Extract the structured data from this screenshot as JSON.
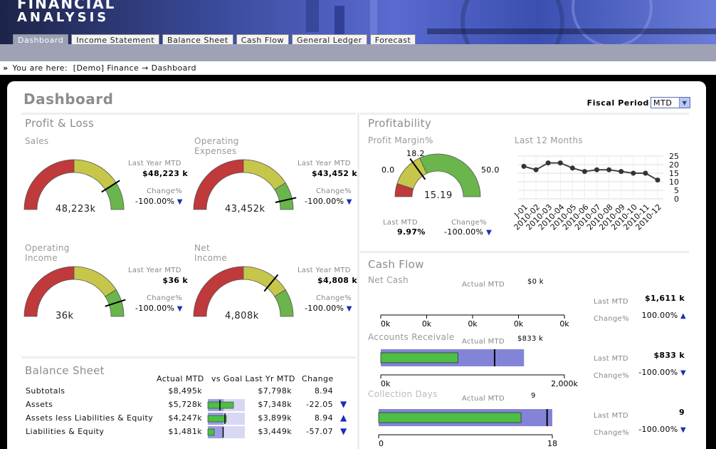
{
  "app": {
    "logo_line1": "FINANCIAL",
    "logo_line2": "ANALYSIS"
  },
  "nav": {
    "tabs": [
      "Dashboard",
      "Income Statement",
      "Balance Sheet",
      "Cash Flow",
      "General Ledger",
      "Forecast"
    ],
    "active": 0
  },
  "breadcrumb": {
    "prefix": "You are here:",
    "path": "[Demo] Finance → Dashboard"
  },
  "page": {
    "title": "Dashboard",
    "fiscal_label": "Fiscal Period",
    "fiscal_value": "MTD"
  },
  "colors": {
    "red": "#c0393b",
    "yellow": "#c6c64a",
    "green": "#6ab54c",
    "bar_green": "#4dbf45",
    "bar_blue": "#8384d8",
    "arrow": "#1a2eb8"
  },
  "profit_loss": {
    "title": "Profit & Loss",
    "last_year_label": "Last Year MTD",
    "change_label": "Change%",
    "gauges": [
      {
        "label": "Sales",
        "value": "48,223k",
        "last_year": "$48,223 k",
        "change": "-100.00%",
        "needle": 0.82
      },
      {
        "label": "Operating\nExpenses",
        "value": "43,452k",
        "last_year": "$43,452 k",
        "change": "-100.00%",
        "needle": 0.93
      },
      {
        "label": "Operating\nIncome",
        "value": "36k",
        "last_year": "$36 k",
        "change": "-100.00%",
        "needle": 0.9
      },
      {
        "label": "Net\nIncome",
        "value": "4,808k",
        "last_year": "$4,808 k",
        "change": "-100.00%",
        "needle": 0.72
      }
    ]
  },
  "profitability": {
    "title": "Profitability",
    "margin_label": "Profit Margin%",
    "gauge_min": "0.0",
    "gauge_max": "50.0",
    "gauge_marker": "18.2",
    "gauge_value": "15.19",
    "last_mtd_label": "Last MTD",
    "last_mtd_value": "9.97%",
    "change_label": "Change%",
    "change_value": "-100.00%",
    "trend_label": "Last 12 Months"
  },
  "chart_data": {
    "type": "line",
    "x": [
      "2010-01",
      "2010-02",
      "2010-03",
      "2010-04",
      "2010-05",
      "2010-06",
      "2010-07",
      "2010-08",
      "2010-09",
      "2010-10",
      "2010-11",
      "2010-12"
    ],
    "x_tick_labels": [
      "J-01",
      "2010-02",
      "2010-03",
      "2010-04",
      "2010-05",
      "2010-06",
      "2010-07",
      "2010-08",
      "2010-09",
      "2010-10",
      "2010-11",
      "2010-12"
    ],
    "values": [
      19,
      17,
      21,
      21,
      18,
      16,
      17,
      17,
      16,
      15,
      15,
      11
    ],
    "ylim": [
      0,
      25
    ],
    "yticks": [
      "25",
      "20",
      "15",
      "10",
      "5",
      "0"
    ],
    "grid": true
  },
  "cash_flow": {
    "title": "Cash Flow",
    "actual_label": "Actual MTD",
    "last_label": "Last MTD",
    "change_label": "Change%",
    "net_cash": {
      "label": "Net Cash",
      "actual": "$0 k",
      "last": "$1,611 k",
      "change": "100.00%",
      "ticks": [
        "0k",
        "0k",
        "0k",
        "0k",
        "0k"
      ]
    },
    "receivable": {
      "label": "Accounts Receivale",
      "actual": "$833 k",
      "last": "$833 k",
      "change": "-100.00%",
      "ticks": [
        "0k",
        "2,000k"
      ],
      "value_frac": 0.42,
      "range_frac": 0.78,
      "marker_frac": 0.62
    },
    "collection": {
      "label": "Collection Days",
      "actual": "9",
      "last": "9",
      "change": "-100.00%",
      "ticks": [
        "0",
        "18"
      ],
      "value_frac": 0.82,
      "range_frac": 1.0,
      "marker_frac": 0.97
    }
  },
  "balance_sheet": {
    "title": "Balance Sheet",
    "headers": [
      "Actual MTD",
      "vs Goal Last Yr MTD",
      "Change"
    ],
    "rows": [
      {
        "name": "Subtotals",
        "actual": "$8,495k",
        "goal": "$7,798k",
        "change": "8.94",
        "arrow": ""
      },
      {
        "name": "Assets",
        "actual": "$5,728k",
        "goal": "$7,348k",
        "change": "-22.05",
        "arrow": "down",
        "bar": 0.72,
        "target": 0.34
      },
      {
        "name": "Assets less Liabilities & Equity",
        "actual": "$4,247k",
        "goal": "$3,899k",
        "change": "8.94",
        "arrow": "up",
        "bar": 0.52,
        "target": 0.48
      },
      {
        "name": "Liabilities & Equity",
        "actual": "$1,481k",
        "goal": "$3,449k",
        "change": "-57.07",
        "arrow": "down",
        "bar": 0.18,
        "target": 0.43
      }
    ]
  }
}
